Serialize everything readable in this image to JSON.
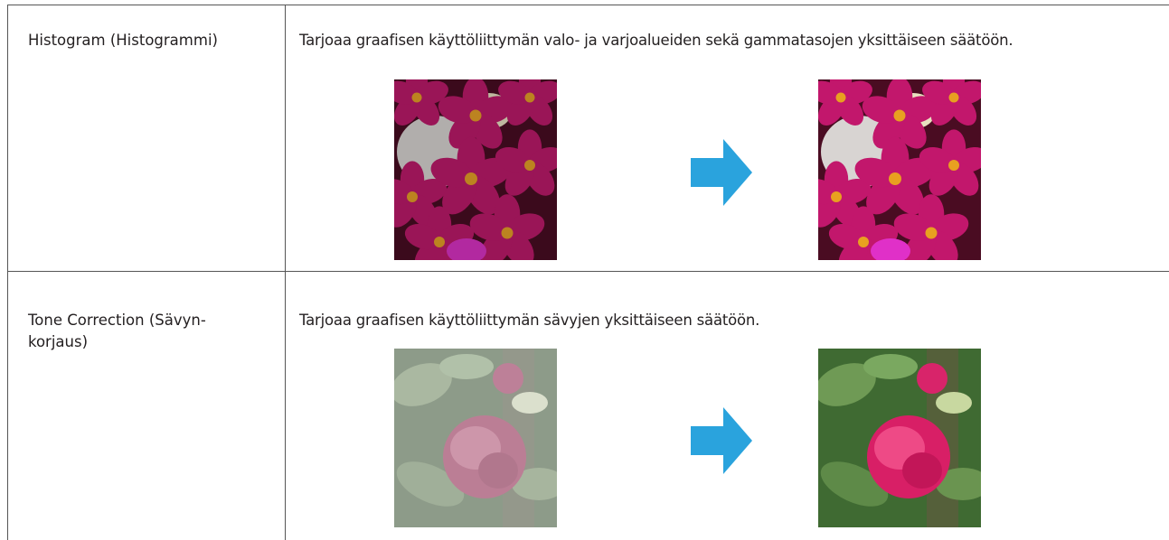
{
  "table": {
    "rows": [
      {
        "label": [
          "Histogram (Histogrammi)"
        ],
        "description": "Tarjoaa graafisen käyttöliittymän valo- ja varjoalueiden sekä gammatasojen yksittäiseen säätöön."
      },
      {
        "label": [
          "Tone Correction (Sävyn-",
          "korjaus)"
        ],
        "description": "Tarjoaa graafisen käyttöliittymän sävyjen yksittäiseen säätöön."
      }
    ]
  }
}
